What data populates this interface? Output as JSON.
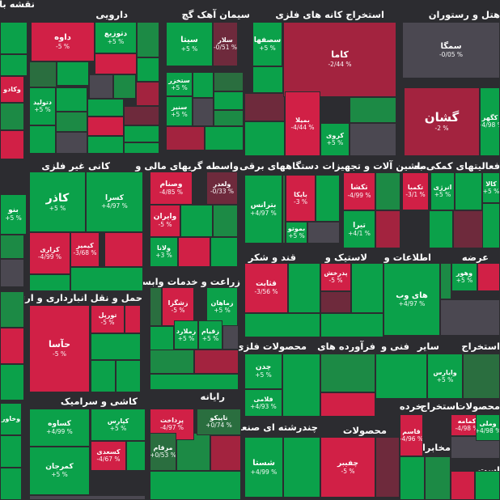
{
  "colors": {
    "bg": "#2c2c30",
    "pos3": "#0ba14a",
    "pos2": "#1c8a45",
    "pos1": "#2a6e3f",
    "zero": "#4b4851",
    "neg1": "#6e2a3c",
    "neg2": "#a3233f",
    "neg3": "#d12046"
  },
  "sectors": [
    {
      "name": "نقشه بازار"
    },
    {
      "name": "دارویی"
    },
    {
      "name": "سیمان آهک گچ"
    },
    {
      "name": "استخراج کانه های فلزی"
    },
    {
      "name": "هتل و رستوران"
    },
    {
      "name": "کانی غیر فلزی"
    },
    {
      "name": "واسطه گریهای مالی و"
    },
    {
      "name": "دستگاههای برقی"
    },
    {
      "name": "ماشین آلات و تجهیزات"
    },
    {
      "name": "فعالیتهای کمکی به"
    },
    {
      "name": "زراعت و خدمات وابسته"
    },
    {
      "name": "قند و شکر"
    },
    {
      "name": "لاستیک و"
    },
    {
      "name": "اطلاعات و"
    },
    {
      "name": "عرضه"
    },
    {
      "name": "حمل و نقل انبارداری و ارتباطات"
    },
    {
      "name": "محصولات فلزی"
    },
    {
      "name": "فرآورده های"
    },
    {
      "name": "فنی و"
    },
    {
      "name": "سایر"
    },
    {
      "name": "استخراج"
    },
    {
      "name": "کاشی و سرامیک"
    },
    {
      "name": "رایانه"
    },
    {
      "name": "چندرشته ای صنعتی"
    },
    {
      "name": "محصولات"
    },
    {
      "name": "خرده"
    },
    {
      "name": "استخراج"
    },
    {
      "name": "محصولات"
    },
    {
      "name": "محصو"
    },
    {
      "name": "مخابرا"
    },
    {
      "name": "سایل"
    },
    {
      "name": "است"
    },
    {
      "name": "چاپ"
    },
    {
      "name": "سایر"
    },
    {
      "name": "وخاور"
    }
  ],
  "chart_data": {
    "type": "treemap",
    "tiles": [
      {
        "name": "داوه",
        "change": "-5 %",
        "value": -5
      },
      {
        "name": "دتوزیع",
        "change": "+5 %",
        "value": 5
      },
      {
        "name": "سیتا",
        "change": "+5 %",
        "value": 5
      },
      {
        "name": "سلار",
        "change": "-0/51 %",
        "value": -0.51
      },
      {
        "name": "سصفها",
        "change": "+5 %",
        "value": 5
      },
      {
        "name": "کاما",
        "change": "-2/44 %",
        "value": -2.44
      },
      {
        "name": "سمگا",
        "change": "-0/05 %",
        "value": -0.05
      },
      {
        "name": "گشان",
        "change": "-2 %",
        "value": -2
      },
      {
        "name": "کگهر",
        "change": "+4/98 %",
        "value": 4.98
      },
      {
        "name": "دتولید",
        "change": "+5 %",
        "value": 5
      },
      {
        "name": "ستخزر",
        "change": "+5 %",
        "value": 5
      },
      {
        "name": "سنیر",
        "change": "+5 %",
        "value": 5
      },
      {
        "name": "بمیلا",
        "change": "-4/44 %",
        "value": -4.44
      },
      {
        "name": "کروی",
        "change": "+5 %",
        "value": 5
      },
      {
        "name": "کاذر",
        "change": "+5 %",
        "value": 5
      },
      {
        "name": "کسرا",
        "change": "+4/97 %",
        "value": 4.97
      },
      {
        "name": "کیمیر",
        "change": "-3/68 %",
        "value": -3.68
      },
      {
        "name": "کزاری",
        "change": "-4/99 %",
        "value": -4.99
      },
      {
        "name": "بنو",
        "change": "+5 %",
        "value": 5
      },
      {
        "name": "وصنام",
        "change": "-4/85 %",
        "value": -4.85
      },
      {
        "name": "ولغدر",
        "change": "-0/33 %",
        "value": -0.33
      },
      {
        "name": "وایران",
        "change": "-5 %",
        "value": -5
      },
      {
        "name": "ولانا",
        "change": "+3 %",
        "value": 3
      },
      {
        "name": "بترانس",
        "change": "+4/97 %",
        "value": 4.97
      },
      {
        "name": "بایکا",
        "change": "-3 %",
        "value": -3
      },
      {
        "name": "بموتو",
        "change": "+5 %",
        "value": 5
      },
      {
        "name": "تکشا",
        "change": "-4/99 %",
        "value": -4.99
      },
      {
        "name": "تیرا",
        "change": "+4/1 %",
        "value": 4.1
      },
      {
        "name": "تکمبا",
        "change": "-3/1 %",
        "value": -3.1
      },
      {
        "name": "انرژی",
        "change": "+5 %",
        "value": 5
      },
      {
        "name": "کالا",
        "change": "+5 %",
        "value": 5
      },
      {
        "name": "زشگزا",
        "change": "-5 %",
        "value": -5
      },
      {
        "name": "زماهان",
        "change": "+5 %",
        "value": 5
      },
      {
        "name": "زملارد",
        "change": "+5 %",
        "value": 5
      },
      {
        "name": "زقیام",
        "change": "+5 %",
        "value": 5
      },
      {
        "name": "قثابت",
        "change": "-3/56 %",
        "value": -3.56
      },
      {
        "name": "پدرخش",
        "change": "-5 %",
        "value": -5
      },
      {
        "name": "های وب",
        "change": "+4/97 %",
        "value": 4.97
      },
      {
        "name": "وهور",
        "change": "+5 %",
        "value": 5
      },
      {
        "name": "تورپل",
        "change": "-5 %",
        "value": -5
      },
      {
        "name": "حآسا",
        "change": "-5 %",
        "value": -5
      },
      {
        "name": "چدن",
        "change": "+5 %",
        "value": 5
      },
      {
        "name": "فلامی",
        "change": "+4/93 %",
        "value": 4.93
      },
      {
        "name": "وایارس",
        "change": "+5 %",
        "value": 5
      },
      {
        "name": "کساوه",
        "change": "+4/99 %",
        "value": 4.99
      },
      {
        "name": "کپارس",
        "change": "+5 %",
        "value": 5
      },
      {
        "name": "کسعدی",
        "change": "-4/67 %",
        "value": -4.67
      },
      {
        "name": "کمرجان",
        "change": "+5 %",
        "value": 5
      },
      {
        "name": "پرداخت",
        "change": "-4/97 %",
        "value": -4.97
      },
      {
        "name": "تاپیکو",
        "change": "+0/74 %",
        "value": 0.74
      },
      {
        "name": "مرقام",
        "change": "+0/53 %",
        "value": 0.53
      },
      {
        "name": "شستا",
        "change": "+4/99 %",
        "value": 4.99
      },
      {
        "name": "چفیبر",
        "change": "-5 %",
        "value": -5
      },
      {
        "name": "قاسم",
        "change": "-4/96 %",
        "value": -4.96
      },
      {
        "name": "کمامه",
        "change": "-4/98 %",
        "value": -4.98
      },
      {
        "name": "وملی",
        "change": "+4/98 %",
        "value": 4.98
      },
      {
        "name": "وکادو",
        "change": "",
        "value": -3
      },
      {
        "name": "وخاور",
        "change": "",
        "value": 4
      }
    ]
  }
}
